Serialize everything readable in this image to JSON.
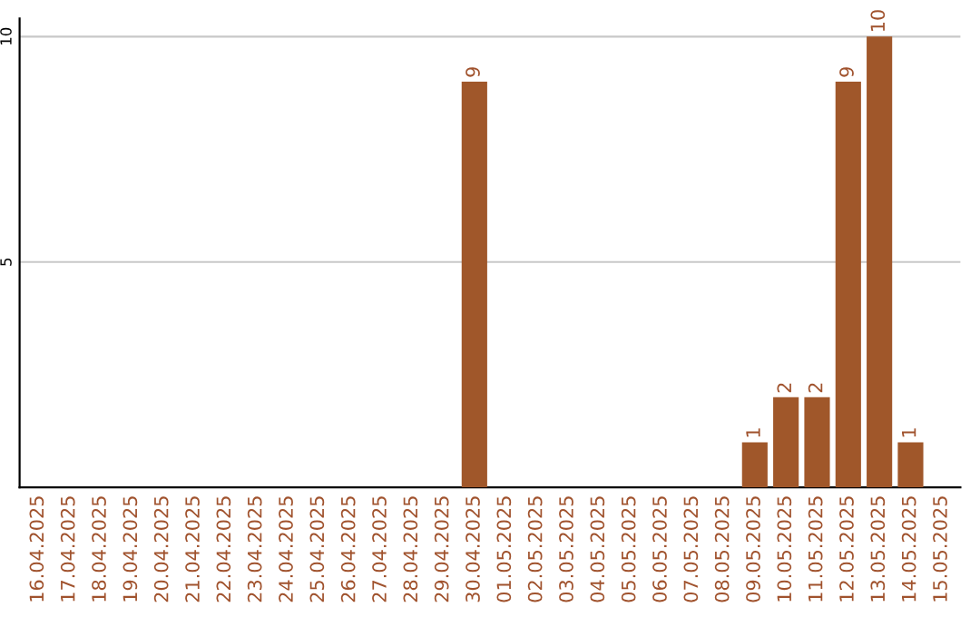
{
  "chart_data": {
    "type": "bar",
    "categories": [
      "16.04.2025",
      "17.04.2025",
      "18.04.2025",
      "19.04.2025",
      "20.04.2025",
      "21.04.2025",
      "22.04.2025",
      "23.04.2025",
      "24.04.2025",
      "25.04.2025",
      "26.04.2025",
      "27.04.2025",
      "28.04.2025",
      "29.04.2025",
      "30.04.2025",
      "01.05.2025",
      "02.05.2025",
      "03.05.2025",
      "04.05.2025",
      "05.05.2025",
      "06.05.2025",
      "07.05.2025",
      "08.05.2025",
      "09.05.2025",
      "10.05.2025",
      "11.05.2025",
      "12.05.2025",
      "13.05.2025",
      "14.05.2025",
      "15.05.2025"
    ],
    "values": [
      0,
      0,
      0,
      0,
      0,
      0,
      0,
      0,
      0,
      0,
      0,
      0,
      0,
      0,
      9,
      0,
      0,
      0,
      0,
      0,
      0,
      0,
      0,
      1,
      2,
      2,
      9,
      10,
      1,
      0
    ],
    "value_labels": [
      null,
      null,
      null,
      null,
      null,
      null,
      null,
      null,
      null,
      null,
      null,
      null,
      null,
      null,
      "9",
      null,
      null,
      null,
      null,
      null,
      null,
      null,
      null,
      "1",
      "2",
      "2",
      "9",
      "10",
      "1",
      null
    ],
    "color": "#a0572a",
    "ylim": [
      0,
      10.4
    ],
    "yticks": [
      5,
      10
    ],
    "grid": "y"
  }
}
